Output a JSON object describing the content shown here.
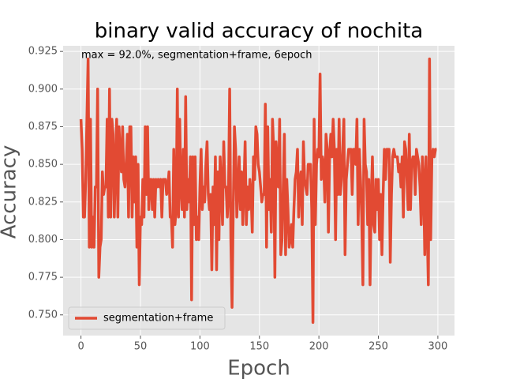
{
  "chart_data": {
    "type": "line",
    "title": "binary valid accuracy of nochita",
    "x_label": "Epoch",
    "y_label": "Accuracy",
    "annotation": "max  = 92.0%, segmentation+frame, 6epoch",
    "legend": "lower left",
    "grid": true,
    "xlim": [
      -15,
      314
    ],
    "ylim": [
      0.73625,
      0.92875
    ],
    "xticks": [
      0,
      50,
      100,
      150,
      200,
      250,
      300
    ],
    "yticks": [
      {
        "value": 0.75,
        "label": "0.750"
      },
      0.775,
      {
        "value": 0.8,
        "label": "0.800"
      },
      0.825,
      {
        "value": 0.85,
        "label": "0.850"
      },
      0.875,
      {
        "value": 0.9,
        "label": "0.900"
      },
      0.925
    ],
    "x": [
      0,
      1,
      2,
      3,
      4,
      5,
      6,
      7,
      8,
      9,
      10,
      11,
      12,
      13,
      14,
      15,
      16,
      17,
      18,
      19,
      20,
      21,
      22,
      23,
      24,
      25,
      26,
      27,
      28,
      29,
      30,
      31,
      32,
      33,
      34,
      35,
      36,
      37,
      38,
      39,
      40,
      41,
      42,
      43,
      44,
      45,
      46,
      47,
      48,
      49,
      50,
      51,
      52,
      53,
      54,
      55,
      56,
      57,
      58,
      59,
      60,
      61,
      62,
      63,
      64,
      65,
      66,
      67,
      68,
      69,
      70,
      71,
      72,
      73,
      74,
      75,
      76,
      77,
      78,
      79,
      80,
      81,
      82,
      83,
      84,
      85,
      86,
      87,
      88,
      89,
      90,
      91,
      92,
      93,
      94,
      95,
      96,
      97,
      98,
      99,
      100,
      101,
      102,
      103,
      104,
      105,
      106,
      107,
      108,
      109,
      110,
      111,
      112,
      113,
      114,
      115,
      116,
      117,
      118,
      119,
      120,
      121,
      122,
      123,
      124,
      125,
      126,
      127,
      128,
      129,
      130,
      131,
      132,
      133,
      134,
      135,
      136,
      137,
      138,
      139,
      140,
      141,
      142,
      143,
      144,
      145,
      146,
      147,
      148,
      149,
      150,
      151,
      152,
      153,
      154,
      155,
      156,
      157,
      158,
      159,
      160,
      161,
      162,
      163,
      164,
      165,
      166,
      167,
      168,
      169,
      170,
      171,
      172,
      173,
      174,
      175,
      176,
      177,
      178,
      179,
      180,
      181,
      182,
      183,
      184,
      185,
      186,
      187,
      188,
      189,
      190,
      191,
      192,
      193,
      194,
      195,
      196,
      197,
      198,
      199,
      200,
      201,
      202,
      203,
      204,
      205,
      206,
      207,
      208,
      209,
      210,
      211,
      212,
      213,
      214,
      215,
      216,
      217,
      218,
      219,
      220,
      221,
      222,
      223,
      224,
      225,
      226,
      227,
      228,
      229,
      230,
      231,
      232,
      233,
      234,
      235,
      236,
      237,
      238,
      239,
      240,
      241,
      242,
      243,
      244,
      245,
      246,
      247,
      248,
      249,
      250,
      251,
      252,
      253,
      254,
      255,
      256,
      257,
      258,
      259,
      260,
      261,
      262,
      263,
      264,
      265,
      266,
      267,
      268,
      269,
      270,
      271,
      272,
      273,
      274,
      275,
      276,
      277,
      278,
      279,
      280,
      281,
      282,
      283,
      284,
      285,
      286,
      287,
      288,
      289,
      290,
      291,
      292,
      293,
      294,
      295,
      296,
      297,
      298,
      299
    ],
    "series": [
      {
        "name": "segmentation+frame",
        "color": "#e24a33",
        "values": [
          0.88,
          0.86,
          0.815,
          0.815,
          0.84,
          0.88,
          0.92,
          0.795,
          0.88,
          0.795,
          0.815,
          0.795,
          0.835,
          0.835,
          0.9,
          0.775,
          0.795,
          0.8,
          0.845,
          0.83,
          0.835,
          0.835,
          0.88,
          0.815,
          0.9,
          0.815,
          0.88,
          0.87,
          0.815,
          0.85,
          0.88,
          0.815,
          0.875,
          0.855,
          0.845,
          0.875,
          0.84,
          0.835,
          0.85,
          0.87,
          0.815,
          0.875,
          0.875,
          0.815,
          0.855,
          0.825,
          0.855,
          0.795,
          0.85,
          0.77,
          0.815,
          0.81,
          0.84,
          0.815,
          0.875,
          0.83,
          0.875,
          0.82,
          0.84,
          0.84,
          0.82,
          0.84,
          0.815,
          0.84,
          0.835,
          0.84,
          0.835,
          0.84,
          0.815,
          0.84,
          0.84,
          0.84,
          0.83,
          0.835,
          0.845,
          0.815,
          0.815,
          0.795,
          0.86,
          0.81,
          0.82,
          0.9,
          0.815,
          0.88,
          0.835,
          0.82,
          0.86,
          0.815,
          0.895,
          0.82,
          0.84,
          0.825,
          0.855,
          0.76,
          0.855,
          0.81,
          0.855,
          0.8,
          0.815,
          0.8,
          0.835,
          0.86,
          0.82,
          0.835,
          0.825,
          0.85,
          0.865,
          0.83,
          0.82,
          0.83,
          0.78,
          0.835,
          0.81,
          0.855,
          0.78,
          0.845,
          0.8,
          0.855,
          0.835,
          0.81,
          0.865,
          0.835,
          0.835,
          0.815,
          0.83,
          0.9,
          0.8,
          0.755,
          0.82,
          0.875,
          0.86,
          0.815,
          0.835,
          0.855,
          0.82,
          0.845,
          0.81,
          0.835,
          0.865,
          0.81,
          0.835,
          0.82,
          0.84,
          0.83,
          0.805,
          0.855,
          0.84,
          0.875,
          0.87,
          0.85,
          0.845,
          0.835,
          0.825,
          0.83,
          0.83,
          0.89,
          0.795,
          0.875,
          0.82,
          0.84,
          0.805,
          0.88,
          0.86,
          0.775,
          0.865,
          0.85,
          0.835,
          0.88,
          0.79,
          0.8,
          0.835,
          0.87,
          0.79,
          0.84,
          0.82,
          0.795,
          0.8,
          0.81,
          0.795,
          0.82,
          0.84,
          0.845,
          0.86,
          0.815,
          0.84,
          0.845,
          0.81,
          0.865,
          0.84,
          0.835,
          0.83,
          0.85,
          0.85,
          0.85,
          0.82,
          0.745,
          0.88,
          0.81,
          0.85,
          0.86,
          0.855,
          0.91,
          0.84,
          0.855,
          0.85,
          0.825,
          0.87,
          0.86,
          0.805,
          0.855,
          0.87,
          0.855,
          0.88,
          0.86,
          0.8,
          0.86,
          0.83,
          0.88,
          0.83,
          0.84,
          0.86,
          0.88,
          0.79,
          0.84,
          0.85,
          0.86,
          0.86,
          0.86,
          0.83,
          0.86,
          0.86,
          0.85,
          0.88,
          0.81,
          0.86,
          0.84,
          0.815,
          0.77,
          0.88,
          0.85,
          0.845,
          0.81,
          0.84,
          0.77,
          0.825,
          0.855,
          0.81,
          0.805,
          0.84,
          0.82,
          0.84,
          0.8,
          0.83,
          0.79,
          0.83,
          0.86,
          0.84,
          0.86,
          0.86,
          0.86,
          0.785,
          0.83,
          0.855,
          0.86,
          0.855,
          0.855,
          0.855,
          0.845,
          0.85,
          0.835,
          0.855,
          0.815,
          0.865,
          0.86,
          0.84,
          0.82,
          0.87,
          0.82,
          0.85,
          0.855,
          0.855,
          0.83,
          0.86,
          0.855,
          0.85,
          0.835,
          0.81,
          0.855,
          0.84,
          0.79,
          0.855,
          0.81,
          0.77,
          0.92,
          0.8,
          0.855,
          0.86,
          0.855,
          0.86,
          0.86
        ]
      }
    ]
  }
}
